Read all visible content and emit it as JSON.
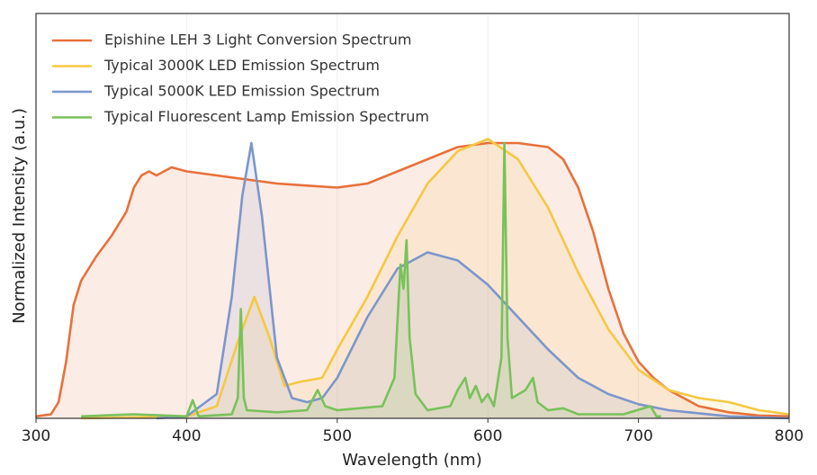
{
  "chart_data": {
    "type": "line",
    "xlabel": "Wavelength (nm)",
    "ylabel": "Normalized Intensity (a.u.)",
    "xlim": [
      300,
      800
    ],
    "ylim": [
      0,
      1
    ],
    "xticks": [
      300,
      400,
      500,
      600,
      700,
      800
    ],
    "grid": true,
    "legend": "upper left",
    "fill": true,
    "series": [
      {
        "name": "Epishine LEH 3 Light Conversion Spectrum",
        "color": "#e8703a",
        "x": [
          300,
          310,
          315,
          320,
          325,
          330,
          340,
          350,
          360,
          365,
          370,
          375,
          380,
          390,
          400,
          420,
          440,
          460,
          480,
          500,
          520,
          540,
          560,
          580,
          600,
          620,
          640,
          650,
          660,
          670,
          680,
          690,
          700,
          710,
          720,
          740,
          760,
          780,
          800
        ],
        "values": [
          0.005,
          0.01,
          0.04,
          0.14,
          0.28,
          0.34,
          0.4,
          0.45,
          0.51,
          0.57,
          0.6,
          0.61,
          0.6,
          0.62,
          0.61,
          0.6,
          0.59,
          0.58,
          0.575,
          0.57,
          0.58,
          0.61,
          0.64,
          0.67,
          0.68,
          0.68,
          0.67,
          0.64,
          0.57,
          0.46,
          0.32,
          0.21,
          0.14,
          0.1,
          0.07,
          0.03,
          0.015,
          0.007,
          0.005
        ]
      },
      {
        "name": "Typical 3000K LED Emission Spectrum",
        "color": "#f5c842",
        "x": [
          330,
          400,
          420,
          435,
          445,
          455,
          465,
          475,
          490,
          500,
          520,
          540,
          560,
          580,
          600,
          620,
          640,
          660,
          680,
          700,
          720,
          740,
          760,
          780,
          800
        ],
        "values": [
          0,
          0.005,
          0.03,
          0.2,
          0.3,
          0.2,
          0.08,
          0.09,
          0.1,
          0.17,
          0.3,
          0.45,
          0.58,
          0.66,
          0.69,
          0.64,
          0.52,
          0.36,
          0.22,
          0.12,
          0.07,
          0.05,
          0.04,
          0.02,
          0.01
        ]
      },
      {
        "name": "Typical 5000K LED Emission Spectrum",
        "color": "#7b96cc",
        "x": [
          380,
          400,
          420,
          430,
          437,
          443,
          450,
          460,
          470,
          480,
          490,
          500,
          520,
          540,
          560,
          580,
          600,
          620,
          640,
          660,
          680,
          700,
          720,
          760,
          800
        ],
        "values": [
          0,
          0.005,
          0.06,
          0.3,
          0.55,
          0.68,
          0.5,
          0.15,
          0.05,
          0.04,
          0.05,
          0.1,
          0.25,
          0.37,
          0.41,
          0.39,
          0.33,
          0.25,
          0.17,
          0.1,
          0.06,
          0.035,
          0.02,
          0.005,
          0
        ]
      },
      {
        "name": "Typical Fluorescent Lamp Emission Spectrum",
        "color": "#78c25a",
        "x": [
          330,
          365,
          400,
          404,
          408,
          430,
          434,
          436,
          438,
          440,
          460,
          480,
          487,
          492,
          500,
          530,
          538,
          542,
          544,
          546,
          548,
          552,
          560,
          575,
          580,
          585,
          588,
          592,
          596,
          600,
          604,
          609,
          611,
          613,
          616,
          625,
          630,
          633,
          640,
          650,
          660,
          690,
          708,
          712,
          715
        ],
        "values": [
          0.005,
          0.01,
          0.005,
          0.045,
          0.005,
          0.01,
          0.05,
          0.27,
          0.05,
          0.02,
          0.015,
          0.02,
          0.07,
          0.03,
          0.02,
          0.03,
          0.1,
          0.38,
          0.32,
          0.44,
          0.2,
          0.06,
          0.02,
          0.03,
          0.07,
          0.1,
          0.05,
          0.08,
          0.04,
          0.06,
          0.03,
          0.15,
          0.68,
          0.2,
          0.05,
          0.07,
          0.1,
          0.04,
          0.02,
          0.025,
          0.01,
          0.01,
          0.03,
          0.005,
          0.005
        ]
      }
    ]
  }
}
